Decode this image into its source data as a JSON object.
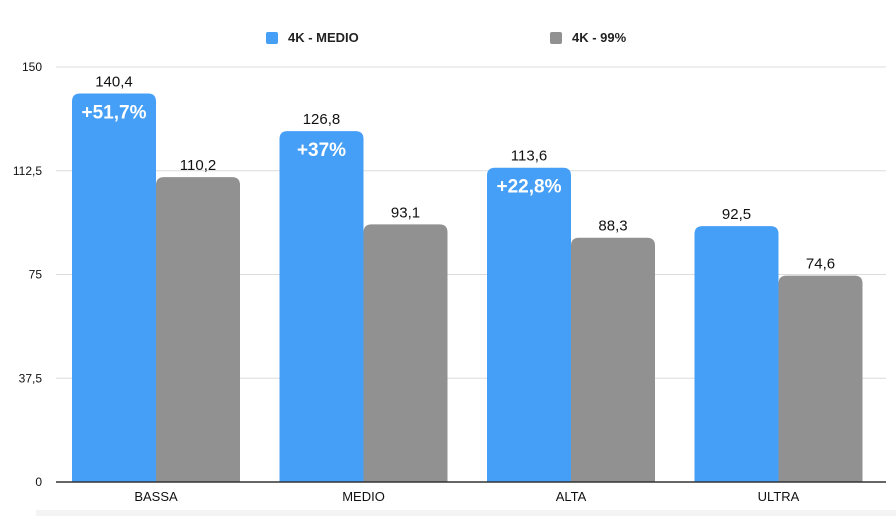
{
  "colors": {
    "series_medio": "#459ff6",
    "series_99": "#919191",
    "grid": "#dcdcdc",
    "axis": "#333333",
    "text": "#111111",
    "badge_text": "#ffffff"
  },
  "chart_data": {
    "type": "bar",
    "categories": [
      "BASSA",
      "MEDIO",
      "ALTA",
      "ULTRA"
    ],
    "series": [
      {
        "name": "4K - MEDIO",
        "values": [
          140.4,
          126.8,
          113.6,
          92.5
        ],
        "labels": [
          "140,4",
          "126,8",
          "113,6",
          "92,5"
        ],
        "badges": [
          "+51,7%",
          "+37%",
          "+22,8%",
          ""
        ]
      },
      {
        "name": "4K - 99%",
        "values": [
          110.2,
          93.1,
          88.3,
          74.6
        ],
        "labels": [
          "110,2",
          "93,1",
          "88,3",
          "74,6"
        ]
      }
    ],
    "yticks": [
      0,
      37.5,
      75,
      112.5,
      150
    ],
    "ytick_labels": [
      "0",
      "37,5",
      "75",
      "112,5",
      "150"
    ],
    "ylim": [
      0,
      150
    ],
    "grid": true,
    "legend_position": "top-center",
    "title": "",
    "xlabel": "",
    "ylabel": ""
  }
}
